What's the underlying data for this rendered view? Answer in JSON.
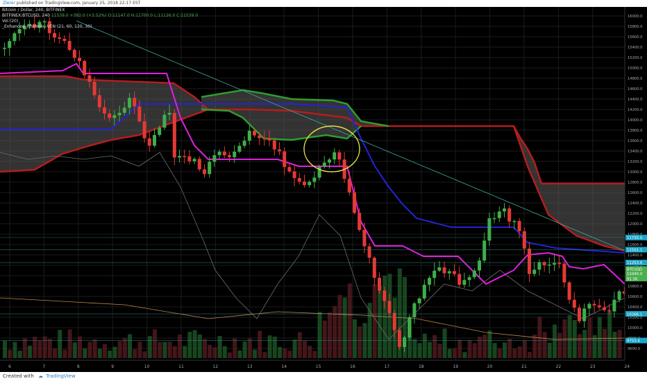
{
  "header": {
    "author": "Zlerer",
    "published_text": "published on TradingView.com, January 25, 2018 22:17 EST"
  },
  "legend": {
    "title": "Bitcoin / Dollar, 240, BITFINEX",
    "symbol_line": "BITFINEX:BTCUSD, 240",
    "ohlc": {
      "o": "11539.0",
      "change": "+392.0 (+3.52%)",
      "open": "O:11147.0",
      "high": "H:11700.0",
      "low": "L:11126.0",
      "close": "C:11539.0"
    },
    "vol": "Vol (20)",
    "indicator": "_Enhanced_Ichimoku-VEN (21, 60, 120, 30)"
  },
  "price_axis": {
    "ticks": [
      "16000.0",
      "15800.0",
      "15600.0",
      "15400.0",
      "15200.0",
      "15000.0",
      "14800.0",
      "14600.0",
      "14400.0",
      "14200.0",
      "14000.0",
      "13800.0",
      "13600.0",
      "13400.0",
      "13200.0",
      "13000.0",
      "12800.0",
      "12600.0",
      "12400.0",
      "12200.0",
      "12000.0",
      "11800.0",
      "11600.0",
      "11400.0",
      "11200.0",
      "11000.0",
      "10800.0",
      "10600.0",
      "10400.0",
      "10200.0",
      "10000.0",
      "9800.0",
      "9600.0"
    ],
    "labels": [
      {
        "text": "11735.0",
        "value": 11735,
        "color": "#1aa6c9"
      },
      {
        "text": "11501.1",
        "value": 11501,
        "color": "#1aa6c9"
      },
      {
        "text": "11253.6",
        "value": 11253,
        "color": "#1aa6c9"
      },
      {
        "text": "BTCUSD",
        "value": 11130,
        "color": "#4caf50"
      },
      {
        "text": "11045.0",
        "value": 11045,
        "color": "#4caf50"
      },
      {
        "text": "91.5K",
        "value": 10945,
        "color": "#4caf50"
      },
      {
        "text": "10266.1",
        "value": 10266,
        "color": "#1aa6c9"
      },
      {
        "text": "9753.4",
        "value": 9753,
        "color": "#1aa6c9"
      }
    ]
  },
  "time_axis": {
    "ticks": [
      "6",
      "7",
      "8",
      "9",
      "10",
      "11",
      "12",
      "13",
      "14",
      "15",
      "16",
      "17",
      "18",
      "19",
      "20",
      "21",
      "22",
      "23",
      "24"
    ]
  },
  "footer": {
    "created_with": "Created with",
    "brand": "TradingView"
  },
  "colors": {
    "up": "#3fae49",
    "down": "#e53935",
    "cloud_red": "#b71c1c",
    "cloud_green": "#2e9e2e",
    "blue_line": "#2323d8",
    "magenta_line": "#e020e0",
    "circle": "#e8e040"
  }
}
